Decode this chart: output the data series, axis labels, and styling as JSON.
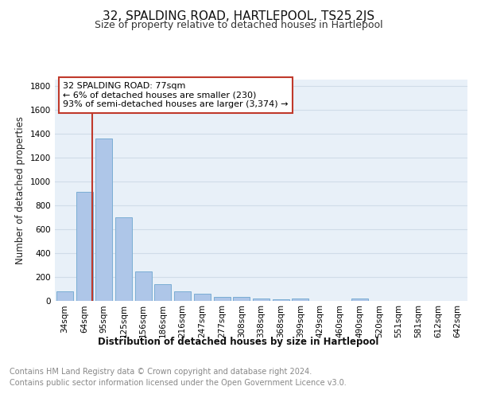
{
  "title": "32, SPALDING ROAD, HARTLEPOOL, TS25 2JS",
  "subtitle": "Size of property relative to detached houses in Hartlepool",
  "xlabel": "Distribution of detached houses by size in Hartlepool",
  "ylabel": "Number of detached properties",
  "footer": "Contains HM Land Registry data © Crown copyright and database right 2024.\nContains public sector information licensed under the Open Government Licence v3.0.",
  "categories": [
    "34sqm",
    "64sqm",
    "95sqm",
    "125sqm",
    "156sqm",
    "186sqm",
    "216sqm",
    "247sqm",
    "277sqm",
    "308sqm",
    "338sqm",
    "368sqm",
    "399sqm",
    "429sqm",
    "460sqm",
    "490sqm",
    "520sqm",
    "551sqm",
    "581sqm",
    "612sqm",
    "642sqm"
  ],
  "values": [
    80,
    910,
    1355,
    700,
    245,
    135,
    80,
    55,
    33,
    27,
    15,
    10,
    16,
    0,
    0,
    18,
    0,
    0,
    0,
    0,
    0
  ],
  "bar_color": "#aec6e8",
  "bar_edge_color": "#7aadd4",
  "vline_x_index": 1.42,
  "vline_color": "#c0392b",
  "annotation_text": "32 SPALDING ROAD: 77sqm\n← 6% of detached houses are smaller (230)\n93% of semi-detached houses are larger (3,374) →",
  "annotation_box_color": "#ffffff",
  "annotation_box_edge_color": "#c0392b",
  "ylim": [
    0,
    1850
  ],
  "yticks": [
    0,
    200,
    400,
    600,
    800,
    1000,
    1200,
    1400,
    1600,
    1800
  ],
  "grid_color": "#d0dce8",
  "background_color": "#e8f0f8",
  "title_fontsize": 11,
  "subtitle_fontsize": 9,
  "axis_label_fontsize": 8.5,
  "tick_fontsize": 7.5,
  "annotation_fontsize": 8,
  "footer_fontsize": 7
}
